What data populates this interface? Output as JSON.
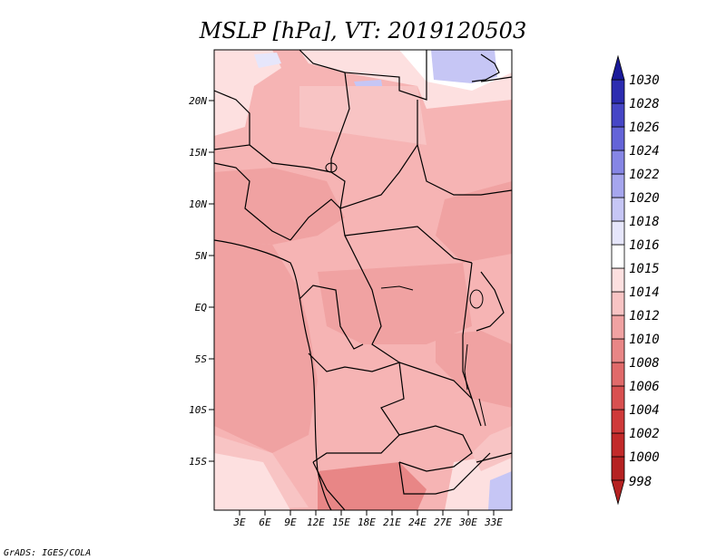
{
  "title": "MSLP [hPa], VT: 2019120503",
  "credit": "GrADS: IGES/COLA",
  "lat_labels": [
    "20N",
    "15N",
    "10N",
    "5N",
    "EQ",
    "5S",
    "10S",
    "15S"
  ],
  "lon_labels": [
    "3E",
    "6E",
    "9E",
    "12E",
    "15E",
    "18E",
    "21E",
    "24E",
    "27E",
    "30E",
    "33E"
  ],
  "colorbar": {
    "levels": [
      "998",
      "1000",
      "1002",
      "1004",
      "1006",
      "1008",
      "1010",
      "1012",
      "1014",
      "1015",
      "1016",
      "1018",
      "1020",
      "1022",
      "1024",
      "1026",
      "1028",
      "1030"
    ],
    "colors": [
      "#b52222",
      "#c22a2a",
      "#cf3a3a",
      "#d85050",
      "#e06a6a",
      "#e88686",
      "#f0a2a2",
      "#f8c4c4",
      "#fde0e0",
      "#ffffff",
      "#e6e6fb",
      "#c6c6f5",
      "#a6a6ee",
      "#8686e5",
      "#6464d8",
      "#4646c6",
      "#2c2cb0",
      "#1a1a9a"
    ]
  },
  "chart_data": {
    "type": "heatmap",
    "title": "MSLP [hPa], VT: 2019120503",
    "variable": "MSLP",
    "units": "hPa",
    "valid_time": "2019120503",
    "xlabel": "",
    "ylabel": "",
    "x_ticks": [
      "3E",
      "6E",
      "9E",
      "12E",
      "15E",
      "18E",
      "21E",
      "24E",
      "27E",
      "30E",
      "33E"
    ],
    "y_ticks": [
      "20N",
      "15N",
      "10N",
      "5N",
      "EQ",
      "5S",
      "10S",
      "15S"
    ],
    "color_levels": [
      998,
      1000,
      1002,
      1004,
      1006,
      1008,
      1010,
      1012,
      1014,
      1015,
      1016,
      1018,
      1020,
      1022,
      1024,
      1026,
      1028,
      1030
    ]
  }
}
